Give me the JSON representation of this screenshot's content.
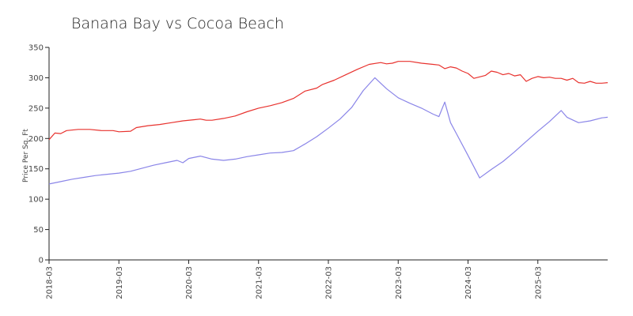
{
  "chart_data": {
    "type": "line",
    "title": "Banana Bay  vs Cocoa Beach",
    "xlabel": "",
    "ylabel": "Price Per Sq. Ft",
    "ylim": [
      0,
      350
    ],
    "xlim": [
      "2018-03",
      "2025-11"
    ],
    "y_ticks": [
      0,
      50,
      100,
      150,
      200,
      250,
      300,
      350
    ],
    "x_ticks": [
      "2018-03",
      "2019-03",
      "2020-03",
      "2021-03",
      "2022-03",
      "2023-03",
      "2024-03",
      "2025-03"
    ],
    "grid": false,
    "legend": "none",
    "series": [
      {
        "color": "#e8322e",
        "points": [
          [
            "2018-03",
            198
          ],
          [
            "2018-04",
            209
          ],
          [
            "2018-05",
            208
          ],
          [
            "2018-06",
            213
          ],
          [
            "2018-08",
            215
          ],
          [
            "2018-10",
            215
          ],
          [
            "2018-12",
            213
          ],
          [
            "2019-02",
            213
          ],
          [
            "2019-03",
            211
          ],
          [
            "2019-05",
            212
          ],
          [
            "2019-06",
            218
          ],
          [
            "2019-08",
            221
          ],
          [
            "2019-10",
            223
          ],
          [
            "2019-12",
            226
          ],
          [
            "2020-02",
            229
          ],
          [
            "2020-04",
            231
          ],
          [
            "2020-05",
            232
          ],
          [
            "2020-06",
            230
          ],
          [
            "2020-07",
            230
          ],
          [
            "2020-09",
            233
          ],
          [
            "2020-11",
            237
          ],
          [
            "2021-01",
            244
          ],
          [
            "2021-03",
            250
          ],
          [
            "2021-05",
            254
          ],
          [
            "2021-07",
            259
          ],
          [
            "2021-09",
            266
          ],
          [
            "2021-11",
            278
          ],
          [
            "2022-01",
            283
          ],
          [
            "2022-02",
            289
          ],
          [
            "2022-04",
            296
          ],
          [
            "2022-06",
            305
          ],
          [
            "2022-08",
            314
          ],
          [
            "2022-10",
            322
          ],
          [
            "2022-12",
            325
          ],
          [
            "2023-01",
            323
          ],
          [
            "2023-02",
            324
          ],
          [
            "2023-03",
            327
          ],
          [
            "2023-05",
            327
          ],
          [
            "2023-07",
            324
          ],
          [
            "2023-09",
            322
          ],
          [
            "2023-10",
            321
          ],
          [
            "2023-11",
            315
          ],
          [
            "2023-12",
            318
          ],
          [
            "2024-01",
            316
          ],
          [
            "2024-02",
            311
          ],
          [
            "2024-03",
            307
          ],
          [
            "2024-04",
            299
          ],
          [
            "2024-06",
            304
          ],
          [
            "2024-07",
            311
          ],
          [
            "2024-08",
            309
          ],
          [
            "2024-09",
            305
          ],
          [
            "2024-10",
            307
          ],
          [
            "2024-11",
            303
          ],
          [
            "2024-12",
            305
          ],
          [
            "2025-01",
            294
          ],
          [
            "2025-02",
            299
          ],
          [
            "2025-03",
            302
          ],
          [
            "2025-04",
            300
          ],
          [
            "2025-05",
            301
          ],
          [
            "2025-06",
            299
          ],
          [
            "2025-07",
            299
          ],
          [
            "2025-08",
            296
          ],
          [
            "2025-09",
            299
          ],
          [
            "2025-10",
            292
          ],
          [
            "2025-11",
            291
          ],
          [
            "2025-12",
            294
          ],
          [
            "2026-01",
            291
          ],
          [
            "2026-02",
            291
          ],
          [
            "2026-03",
            292
          ]
        ]
      },
      {
        "color": "#8a85e8",
        "points": [
          [
            "2018-03",
            125
          ],
          [
            "2018-05",
            129
          ],
          [
            "2018-07",
            133
          ],
          [
            "2018-09",
            136
          ],
          [
            "2018-11",
            139
          ],
          [
            "2019-01",
            141
          ],
          [
            "2019-03",
            143
          ],
          [
            "2019-05",
            146
          ],
          [
            "2019-07",
            151
          ],
          [
            "2019-09",
            156
          ],
          [
            "2019-11",
            160
          ],
          [
            "2020-01",
            164
          ],
          [
            "2020-02",
            160
          ],
          [
            "2020-03",
            167
          ],
          [
            "2020-05",
            171
          ],
          [
            "2020-07",
            166
          ],
          [
            "2020-09",
            164
          ],
          [
            "2020-11",
            166
          ],
          [
            "2021-01",
            170
          ],
          [
            "2021-03",
            173
          ],
          [
            "2021-05",
            176
          ],
          [
            "2021-07",
            177
          ],
          [
            "2021-09",
            180
          ],
          [
            "2021-11",
            191
          ],
          [
            "2022-01",
            203
          ],
          [
            "2022-03",
            217
          ],
          [
            "2022-05",
            232
          ],
          [
            "2022-07",
            251
          ],
          [
            "2022-09",
            279
          ],
          [
            "2022-11",
            300
          ],
          [
            "2023-01",
            282
          ],
          [
            "2023-03",
            267
          ],
          [
            "2023-05",
            258
          ],
          [
            "2023-07",
            250
          ],
          [
            "2023-09",
            240
          ],
          [
            "2023-10",
            236
          ],
          [
            "2023-11",
            260
          ],
          [
            "2023-12",
            226
          ],
          [
            "2024-01",
            208
          ],
          [
            "2024-03",
            172
          ],
          [
            "2024-05",
            135
          ],
          [
            "2024-07",
            149
          ],
          [
            "2024-09",
            162
          ],
          [
            "2024-11",
            178
          ],
          [
            "2025-01",
            195
          ],
          [
            "2025-03",
            212
          ],
          [
            "2025-05",
            228
          ],
          [
            "2025-07",
            246
          ],
          [
            "2025-08",
            235
          ],
          [
            "2025-10",
            226
          ],
          [
            "2025-12",
            229
          ],
          [
            "2026-02",
            234
          ],
          [
            "2026-03",
            235
          ]
        ]
      }
    ]
  }
}
